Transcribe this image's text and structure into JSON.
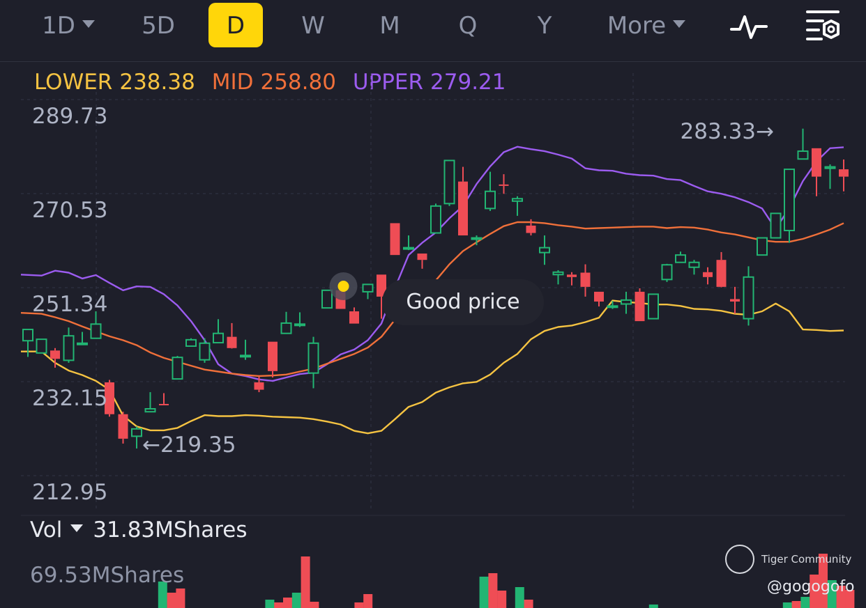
{
  "toolbar": {
    "tabs": [
      {
        "label": "1D",
        "dropdown": true
      },
      {
        "label": "5D"
      },
      {
        "label": "D",
        "active": true
      },
      {
        "label": "W"
      },
      {
        "label": "M"
      },
      {
        "label": "Q"
      },
      {
        "label": "Y"
      },
      {
        "label": "More",
        "dropdown": true
      }
    ],
    "icons": [
      "indicator-wave-icon",
      "settings-filter-icon"
    ],
    "active_color": "#ffd60a"
  },
  "legend": {
    "lower": {
      "label": "LOWER",
      "value": "238.38",
      "color": "#f5c342"
    },
    "mid": {
      "label": "MID",
      "value": "258.80",
      "color": "#f0703a"
    },
    "upper": {
      "label": "UPPER",
      "value": "279.21",
      "color": "#9c5cf0"
    }
  },
  "tooltip": {
    "text": "Good price"
  },
  "volume": {
    "label": "Vol",
    "current": "31.83MShares",
    "max_label": "69.53MShares",
    "values": [
      0,
      0,
      0,
      0,
      0,
      0,
      38,
      22,
      28,
      0,
      0,
      0,
      0,
      0,
      0,
      0,
      0,
      0,
      12,
      8,
      15,
      22,
      74,
      9,
      0,
      0,
      0,
      0,
      8,
      20,
      0,
      0,
      0,
      0,
      0,
      0,
      0,
      0,
      0,
      0,
      0,
      0,
      45,
      50,
      25,
      0,
      30,
      12,
      0,
      0,
      0,
      0,
      0,
      0,
      0,
      0,
      0,
      0,
      0,
      0,
      0,
      5,
      0,
      0,
      0,
      0,
      0,
      0,
      0,
      0,
      0,
      0,
      0,
      0,
      0,
      0,
      8,
      10,
      16,
      48,
      78,
      40,
      32,
      26
    ],
    "colors": {
      "up": "#22b573",
      "down": "#ef4d55"
    }
  },
  "watermark": {
    "brand": "Tiger Community",
    "handle": "@gogogofo"
  },
  "chart_data": {
    "type": "candlestick",
    "y_ticks": [
      "289.73",
      "270.53",
      "251.34",
      "232.15",
      "212.95"
    ],
    "y_tick_values": [
      289.73,
      270.53,
      251.34,
      232.15,
      212.95
    ],
    "annotations": [
      {
        "text": "283.33",
        "value": 283.33,
        "index": 56,
        "direction": "right"
      },
      {
        "text": "219.35",
        "value": 219.35,
        "index": 8,
        "direction": "left"
      }
    ],
    "candles": [
      [
        240.5,
        242.8,
        238.0,
        237.2
      ],
      [
        238.0,
        240.8,
        238.0,
        238.5
      ],
      [
        238.5,
        236.8,
        239.0,
        235.0
      ],
      [
        236.5,
        241.5,
        243.2,
        236.0
      ],
      [
        240.0,
        240.0,
        242.3,
        240.0
      ],
      [
        241.0,
        243.9,
        246.5,
        241.0
      ],
      [
        232.0,
        225.5,
        232.5,
        225.0
      ],
      [
        225.5,
        220.5,
        226.0,
        219.5
      ],
      [
        221.0,
        222.5,
        223.0,
        218.5
      ],
      [
        226.0,
        226.6,
        230.0,
        226.0
      ],
      [
        227.6,
        227.5,
        229.8,
        227.4
      ],
      [
        232.7,
        237.1,
        237.4,
        232.7
      ],
      [
        239.4,
        240.7,
        241.0,
        239.4
      ],
      [
        236.6,
        240.0,
        241.0,
        236.0
      ],
      [
        240.1,
        242.0,
        244.9,
        240.0
      ],
      [
        241.3,
        239.0,
        244.1,
        238.9
      ],
      [
        237.4,
        237.5,
        240.7,
        236.6
      ],
      [
        232.0,
        230.5,
        233.2,
        230.0
      ],
      [
        240.3,
        234.3,
        234.0,
        233.0
      ],
      [
        242.0,
        244.1,
        246.4,
        242.0
      ],
      [
        243.8,
        243.9,
        246.3,
        243.3
      ],
      [
        233.9,
        240.0,
        241.3,
        230.8
      ],
      [
        247.2,
        250.8,
        248.5,
        248.1
      ],
      [
        250.8,
        247.0,
        251.1,
        247.1
      ],
      [
        246.5,
        244.0,
        247.3,
        244.0
      ],
      [
        250.5,
        252.0,
        251.8,
        249.0
      ],
      [
        254.0,
        249.5,
        251.7,
        245.0
      ],
      [
        264.5,
        258.0,
        264.5,
        258.0
      ],
      [
        259.5,
        259.5,
        262.0,
        259.0
      ],
      [
        258.3,
        257.0,
        257.5,
        255.2
      ],
      [
        262.5,
        268.0,
        268.5,
        262.5
      ],
      [
        268.5,
        277.3,
        277.3,
        268.0
      ],
      [
        273.0,
        262.0,
        276.0,
        263.5
      ],
      [
        261.5,
        261.5,
        262.0,
        260.0
      ],
      [
        267.5,
        271.0,
        275.0,
        267.0
      ],
      [
        272.4,
        272.2,
        274.5,
        270.5
      ],
      [
        269.0,
        269.5,
        270.0,
        266.0
      ],
      [
        264.0,
        262.5,
        265.3,
        262.0
      ],
      [
        258.5,
        259.5,
        262.0,
        256.0
      ],
      [
        254.0,
        254.5,
        254.9,
        252.0
      ],
      [
        254.0,
        253.5,
        254.5,
        251.8
      ],
      [
        254.4,
        251.5,
        256.1,
        249.5
      ],
      [
        250.5,
        248.5,
        249.0,
        247.5
      ],
      [
        247.5,
        247.6,
        248.6,
        247.0
      ],
      [
        248.0,
        248.8,
        250.5,
        246.0
      ],
      [
        250.5,
        244.5,
        251.2,
        244.5
      ],
      [
        245.0,
        250.0,
        249.5,
        245.0
      ],
      [
        253.0,
        256.0,
        256.2,
        252.5
      ],
      [
        256.5,
        258.0,
        258.7,
        257.5
      ],
      [
        255.5,
        256.5,
        257.0,
        254.0
      ],
      [
        254.5,
        253.5,
        255.5,
        252.0
      ],
      [
        257.0,
        251.5,
        258.6,
        251.4
      ],
      [
        249.0,
        248.5,
        251.5,
        246.0
      ],
      [
        245.0,
        253.5,
        255.7,
        243.6
      ],
      [
        258.0,
        261.5,
        259.5,
        258.0
      ],
      [
        261.5,
        266.5,
        265.6,
        261.7
      ],
      [
        263.0,
        275.5,
        275.5,
        260.5
      ],
      [
        277.6,
        279.2,
        283.8,
        278.0
      ],
      [
        279.8,
        274.0,
        279.5,
        270.0
      ],
      [
        275.7,
        276.0,
        276.5,
        271.5
      ],
      [
        275.5,
        274.0,
        277.5,
        271.0
      ]
    ],
    "bollinger": {
      "upper": [
        254.0,
        253.8,
        254.8,
        254.4,
        253.2,
        253.9,
        252.3,
        250.8,
        251.6,
        251.5,
        250.0,
        247.7,
        244.5,
        240.6,
        235.7,
        233.8,
        233.3,
        232.6,
        232.3,
        233.0,
        233.7,
        234.0,
        235.7,
        237.7,
        238.7,
        240.6,
        244.0,
        251.3,
        258.0,
        260.5,
        262.6,
        265.5,
        268.0,
        272.5,
        276.1,
        279.0,
        280.1,
        279.6,
        279.2,
        278.5,
        277.7,
        275.7,
        275.3,
        275.2,
        274.6,
        274.3,
        274.2,
        273.5,
        273.3,
        272.1,
        271.0,
        270.5,
        269.8,
        268.8,
        267.5,
        263.3,
        267.6,
        273.1,
        277.1,
        279.8,
        280.0
      ],
      "mid": [
        246.2,
        246.0,
        245.3,
        244.5,
        243.4,
        242.4,
        241.4,
        240.6,
        239.6,
        238.1,
        237.0,
        236.2,
        235.4,
        234.6,
        234.2,
        233.8,
        233.5,
        233.3,
        233.4,
        233.6,
        234.2,
        234.8,
        235.8,
        236.8,
        237.8,
        239.1,
        241.3,
        244.8,
        247.5,
        250.0,
        252.8,
        256.1,
        258.8,
        260.6,
        262.3,
        263.9,
        264.7,
        264.7,
        264.5,
        264.1,
        263.8,
        263.4,
        263.5,
        263.6,
        263.7,
        263.8,
        263.8,
        263.5,
        263.7,
        263.6,
        263.2,
        262.6,
        262.2,
        261.6,
        261.0,
        260.7,
        260.7,
        261.3,
        262.2,
        263.2,
        264.5
      ],
      "lower": [
        238.3,
        238.3,
        236.0,
        234.4,
        233.5,
        232.3,
        230.5,
        225.2,
        223.0,
        222.2,
        222.2,
        222.7,
        224.1,
        225.3,
        225.1,
        225.1,
        225.3,
        225.2,
        225.0,
        224.9,
        224.8,
        224.5,
        224.0,
        223.4,
        222.1,
        221.6,
        222.1,
        224.5,
        227.0,
        228.0,
        229.9,
        231.0,
        231.8,
        232.1,
        233.6,
        236.0,
        237.8,
        240.8,
        242.5,
        243.3,
        243.6,
        244.3,
        245.2,
        248.7,
        248.4,
        248.2,
        247.9,
        247.9,
        247.6,
        247.0,
        246.9,
        246.6,
        246.0,
        245.8,
        246.5,
        248.1,
        246.5,
        242.8,
        242.7,
        242.5,
        242.6
      ]
    },
    "colors": {
      "up": "#22b573",
      "down": "#ef4d55",
      "grid": "#333645",
      "upper": "#9c5cf0",
      "mid": "#f0703a",
      "lower": "#f5c342"
    },
    "marker": {
      "index": 23,
      "value": 251.34,
      "color": "#ffd60a"
    }
  }
}
